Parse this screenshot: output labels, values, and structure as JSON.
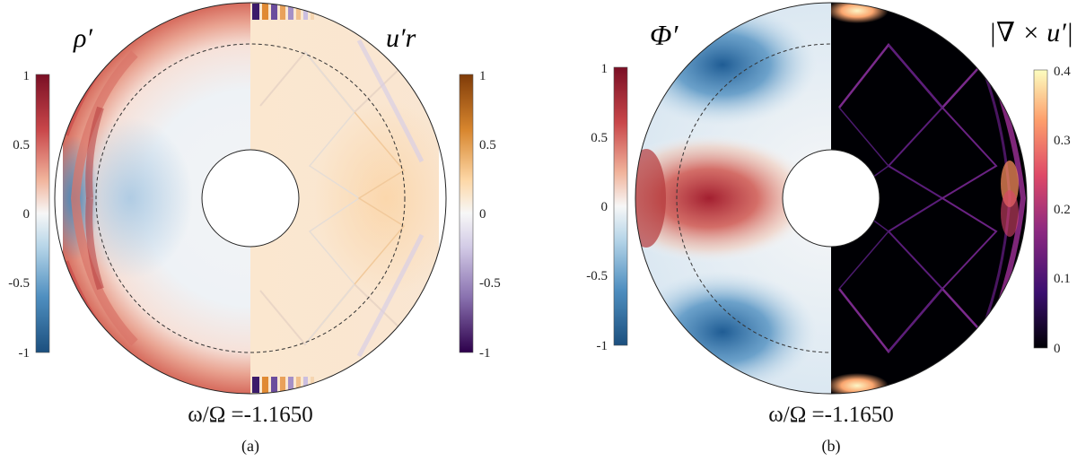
{
  "chart_data": [
    {
      "type": "heatmap",
      "panel": "(a)",
      "left_half": {
        "field": "ρ′",
        "colorbar": {
          "colormap": "red-white-blue",
          "range": [
            -1,
            1
          ],
          "tick_labels": [
            "1",
            "0.5",
            "0",
            "-0.5",
            "-1"
          ],
          "tick_values": [
            1,
            0.5,
            0,
            -0.5,
            -1
          ]
        }
      },
      "right_half": {
        "field": "u′r",
        "colorbar": {
          "colormap": "orange-white-purple",
          "range": [
            -1,
            1
          ],
          "tick_labels": [
            "1",
            "0.5",
            "0",
            "-0.5",
            "-1"
          ],
          "tick_values": [
            1,
            0.5,
            0,
            -0.5,
            -1
          ]
        }
      },
      "frequency_label": "ω/Ω =-1.1650",
      "caption": "(a)"
    },
    {
      "type": "heatmap",
      "panel": "(b)",
      "left_half": {
        "field": "Φ′",
        "colorbar": {
          "colormap": "red-white-blue",
          "range": [
            -1,
            1
          ],
          "tick_labels": [
            "1",
            "0.5",
            "0",
            "-0.5",
            "-1"
          ],
          "tick_values": [
            1,
            0.5,
            0,
            -0.5,
            -1
          ]
        }
      },
      "right_half": {
        "field": "|∇ × u′|",
        "colorbar": {
          "colormap": "magma",
          "range": [
            0,
            0.4
          ],
          "tick_labels": [
            "0.4",
            "0.3",
            "0.2",
            "0.1",
            "0"
          ],
          "tick_values": [
            0.4,
            0.3,
            0.2,
            0.1,
            0
          ]
        }
      },
      "frequency_label": "ω/Ω =-1.1650",
      "caption": "(b)"
    }
  ],
  "colors": {
    "red_dark": "#8b1a2b",
    "blue_dark": "#1f5f96",
    "orange_dark": "#8a4a0f",
    "purple_dark": "#3a0f5a",
    "magma_low": "#000004",
    "magma_high": "#fcfdbf"
  }
}
